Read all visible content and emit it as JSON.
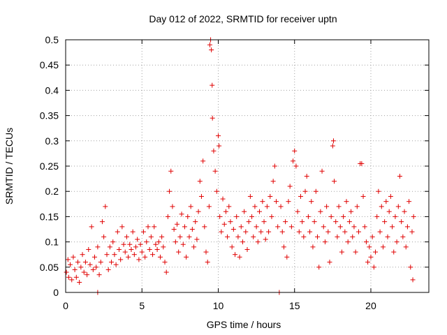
{
  "chart_data": {
    "type": "scatter",
    "title": "Day 012 of 2022, SRMTID for receiver uptn",
    "xlabel": "GPS time / hours",
    "ylabel": "SRMTID / TECUs",
    "xlim": [
      0,
      23.8
    ],
    "ylim": [
      0,
      0.5
    ],
    "x_ticks": [
      0,
      5,
      10,
      15,
      20
    ],
    "x_tick_labels": [
      "0",
      "5",
      "10",
      "15",
      "20"
    ],
    "y_ticks": [
      0,
      0.05,
      0.1,
      0.15,
      0.2,
      0.25,
      0.3,
      0.35,
      0.4,
      0.45,
      0.5
    ],
    "y_tick_labels": [
      "0",
      "0.05",
      "0.1",
      "0.15",
      "0.2",
      "0.25",
      "0.3",
      "0.35",
      "0.4",
      "0.45",
      "0.5"
    ],
    "marker": "+",
    "color": "#e00000",
    "grid": true,
    "series": [
      {
        "name": "SRMTID",
        "points": [
          [
            0.05,
            0.04
          ],
          [
            0.15,
            0.065
          ],
          [
            0.2,
            0.03
          ],
          [
            0.3,
            0.055
          ],
          [
            0.4,
            0.025
          ],
          [
            0.5,
            0.07
          ],
          [
            0.6,
            0.045
          ],
          [
            0.7,
            0.03
          ],
          [
            0.8,
            0.06
          ],
          [
            0.9,
            0.02
          ],
          [
            1.0,
            0.05
          ],
          [
            1.1,
            0.075
          ],
          [
            1.2,
            0.04
          ],
          [
            1.3,
            0.06
          ],
          [
            1.4,
            0.035
          ],
          [
            1.5,
            0.085
          ],
          [
            1.6,
            0.055
          ],
          [
            1.7,
            0.13
          ],
          [
            1.8,
            0.045
          ],
          [
            1.9,
            0.07
          ],
          [
            2.0,
            0.05
          ],
          [
            2.1,
            0.09
          ],
          [
            2.2,
            0.035
          ],
          [
            2.3,
            0.06
          ],
          [
            2.4,
            0.14
          ],
          [
            2.5,
            0.11
          ],
          [
            2.6,
            0.17
          ],
          [
            2.7,
            0.075
          ],
          [
            2.8,
            0.045
          ],
          [
            2.9,
            0.09
          ],
          [
            3.0,
            0.06
          ],
          [
            3.1,
            0.1
          ],
          [
            3.2,
            0.075
          ],
          [
            3.3,
            0.055
          ],
          [
            3.4,
            0.12
          ],
          [
            3.5,
            0.085
          ],
          [
            3.6,
            0.065
          ],
          [
            3.7,
            0.13
          ],
          [
            3.8,
            0.095
          ],
          [
            3.9,
            0.08
          ],
          [
            4.0,
            0.11
          ],
          [
            4.1,
            0.07
          ],
          [
            4.2,
            0.095
          ],
          [
            4.3,
            0.085
          ],
          [
            4.4,
            0.12
          ],
          [
            4.5,
            0.075
          ],
          [
            4.6,
            0.09
          ],
          [
            4.7,
            0.105
          ],
          [
            4.8,
            0.065
          ],
          [
            4.9,
            0.095
          ],
          [
            5.0,
            0.08
          ],
          [
            5.1,
            0.12
          ],
          [
            5.2,
            0.07
          ],
          [
            5.3,
            0.1
          ],
          [
            5.4,
            0.13
          ],
          [
            5.5,
            0.085
          ],
          [
            5.6,
            0.11
          ],
          [
            5.7,
            0.075
          ],
          [
            5.8,
            0.13
          ],
          [
            5.9,
            0.095
          ],
          [
            6.0,
            0.085
          ],
          [
            6.1,
            0.1
          ],
          [
            6.2,
            0.07
          ],
          [
            6.3,
            0.11
          ],
          [
            6.4,
            0.09
          ],
          [
            6.5,
            0.06
          ],
          [
            6.6,
            0.04
          ],
          [
            6.7,
            0.15
          ],
          [
            6.8,
            0.2
          ],
          [
            6.9,
            0.24
          ],
          [
            7.0,
            0.17
          ],
          [
            7.1,
            0.125
          ],
          [
            7.2,
            0.1
          ],
          [
            7.3,
            0.135
          ],
          [
            7.4,
            0.08
          ],
          [
            7.5,
            0.11
          ],
          [
            7.6,
            0.155
          ],
          [
            7.7,
            0.095
          ],
          [
            7.8,
            0.13
          ],
          [
            7.9,
            0.07
          ],
          [
            8.0,
            0.15
          ],
          [
            8.1,
            0.11
          ],
          [
            8.2,
            0.17
          ],
          [
            8.3,
            0.125
          ],
          [
            8.4,
            0.09
          ],
          [
            8.5,
            0.14
          ],
          [
            8.6,
            0.105
          ],
          [
            8.7,
            0.16
          ],
          [
            8.8,
            0.22
          ],
          [
            8.9,
            0.19
          ],
          [
            9.0,
            0.26
          ],
          [
            9.1,
            0.13
          ],
          [
            9.2,
            0.08
          ],
          [
            9.3,
            0.06
          ],
          [
            9.4,
            0.17
          ],
          [
            9.45,
            0.49
          ],
          [
            9.5,
            0.5
          ],
          [
            9.55,
            0.48
          ],
          [
            9.6,
            0.41
          ],
          [
            9.62,
            0.345
          ],
          [
            9.7,
            0.28
          ],
          [
            9.8,
            0.24
          ],
          [
            9.9,
            0.2
          ],
          [
            10.0,
            0.31
          ],
          [
            10.05,
            0.29
          ],
          [
            10.1,
            0.15
          ],
          [
            10.2,
            0.12
          ],
          [
            10.3,
            0.185
          ],
          [
            10.4,
            0.135
          ],
          [
            10.5,
            0.16
          ],
          [
            10.6,
            0.11
          ],
          [
            10.7,
            0.17
          ],
          [
            10.8,
            0.14
          ],
          [
            10.9,
            0.09
          ],
          [
            11.0,
            0.125
          ],
          [
            11.1,
            0.075
          ],
          [
            11.2,
            0.15
          ],
          [
            11.3,
            0.11
          ],
          [
            11.4,
            0.07
          ],
          [
            11.5,
            0.13
          ],
          [
            11.6,
            0.1
          ],
          [
            11.7,
            0.16
          ],
          [
            11.8,
            0.12
          ],
          [
            11.9,
            0.085
          ],
          [
            12.0,
            0.14
          ],
          [
            12.1,
            0.19
          ],
          [
            12.2,
            0.15
          ],
          [
            12.3,
            0.11
          ],
          [
            12.4,
            0.17
          ],
          [
            12.5,
            0.13
          ],
          [
            12.6,
            0.1
          ],
          [
            12.7,
            0.16
          ],
          [
            12.8,
            0.12
          ],
          [
            12.9,
            0.18
          ],
          [
            13.0,
            0.14
          ],
          [
            13.1,
            0.105
          ],
          [
            13.2,
            0.17
          ],
          [
            13.3,
            0.12
          ],
          [
            13.4,
            0.19
          ],
          [
            13.5,
            0.15
          ],
          [
            13.6,
            0.22
          ],
          [
            13.7,
            0.25
          ],
          [
            13.8,
            0.18
          ],
          [
            13.9,
            0.13
          ],
          [
            14.0,
            0.0
          ],
          [
            14.1,
            0.17
          ],
          [
            14.2,
            0.12
          ],
          [
            14.3,
            0.09
          ],
          [
            14.4,
            0.14
          ],
          [
            14.5,
            0.07
          ],
          [
            14.6,
            0.18
          ],
          [
            14.7,
            0.21
          ],
          [
            14.8,
            0.13
          ],
          [
            14.9,
            0.26
          ],
          [
            15.0,
            0.28
          ],
          [
            15.1,
            0.25
          ],
          [
            15.2,
            0.16
          ],
          [
            15.3,
            0.12
          ],
          [
            15.4,
            0.19
          ],
          [
            15.5,
            0.14
          ],
          [
            15.6,
            0.11
          ],
          [
            15.7,
            0.2
          ],
          [
            15.8,
            0.23
          ],
          [
            15.9,
            0.15
          ],
          [
            16.0,
            0.12
          ],
          [
            16.1,
            0.18
          ],
          [
            16.2,
            0.09
          ],
          [
            16.3,
            0.14
          ],
          [
            16.4,
            0.2
          ],
          [
            16.5,
            0.11
          ],
          [
            16.6,
            0.05
          ],
          [
            16.7,
            0.16
          ],
          [
            16.8,
            0.24
          ],
          [
            16.9,
            0.13
          ],
          [
            17.0,
            0.1
          ],
          [
            17.1,
            0.17
          ],
          [
            17.2,
            0.12
          ],
          [
            17.3,
            0.06
          ],
          [
            17.4,
            0.15
          ],
          [
            17.5,
            0.29
          ],
          [
            17.55,
            0.3
          ],
          [
            17.6,
            0.22
          ],
          [
            17.7,
            0.14
          ],
          [
            17.8,
            0.11
          ],
          [
            17.9,
            0.17
          ],
          [
            18.0,
            0.13
          ],
          [
            18.1,
            0.08
          ],
          [
            18.2,
            0.15
          ],
          [
            18.3,
            0.12
          ],
          [
            18.4,
            0.18
          ],
          [
            18.5,
            0.1
          ],
          [
            18.6,
            0.14
          ],
          [
            18.7,
            0.16
          ],
          [
            18.8,
            0.11
          ],
          [
            18.9,
            0.13
          ],
          [
            19.0,
            0.08
          ],
          [
            19.1,
            0.17
          ],
          [
            19.2,
            0.12
          ],
          [
            19.3,
            0.255
          ],
          [
            19.4,
            0.255
          ],
          [
            19.5,
            0.19
          ],
          [
            19.6,
            0.13
          ],
          [
            19.7,
            0.1
          ],
          [
            19.8,
            0.06
          ],
          [
            19.9,
            0.09
          ],
          [
            20.0,
            0.07
          ],
          [
            20.1,
            0.11
          ],
          [
            20.2,
            0.05
          ],
          [
            20.3,
            0.08
          ],
          [
            20.4,
            0.15
          ],
          [
            20.5,
            0.2
          ],
          [
            20.6,
            0.12
          ],
          [
            20.7,
            0.17
          ],
          [
            20.8,
            0.09
          ],
          [
            20.9,
            0.14
          ],
          [
            21.0,
            0.18
          ],
          [
            21.1,
            0.11
          ],
          [
            21.2,
            0.16
          ],
          [
            21.3,
            0.19
          ],
          [
            21.4,
            0.13
          ],
          [
            21.5,
            0.08
          ],
          [
            21.6,
            0.15
          ],
          [
            21.7,
            0.1
          ],
          [
            21.8,
            0.17
          ],
          [
            21.9,
            0.23
          ],
          [
            22.0,
            0.14
          ],
          [
            22.1,
            0.11
          ],
          [
            22.2,
            0.16
          ],
          [
            22.3,
            0.09
          ],
          [
            22.4,
            0.13
          ],
          [
            22.5,
            0.18
          ],
          [
            22.6,
            0.05
          ],
          [
            22.7,
            0.12
          ],
          [
            22.75,
            0.025
          ],
          [
            22.8,
            0.15
          ],
          [
            2.1,
            0.0
          ]
        ]
      }
    ]
  }
}
